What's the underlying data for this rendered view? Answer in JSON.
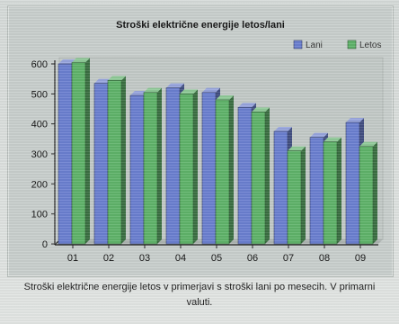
{
  "chart_data": {
    "type": "bar",
    "title": "Stroški električne energije letos/lani",
    "categories": [
      "01",
      "02",
      "03",
      "04",
      "05",
      "06",
      "07",
      "08",
      "09"
    ],
    "series": [
      {
        "name": "Lani",
        "values": [
          600,
          535,
          495,
          520,
          505,
          455,
          375,
          355,
          405
        ],
        "color": "#6b7fd0"
      },
      {
        "name": "Letos",
        "values": [
          605,
          545,
          505,
          500,
          480,
          440,
          310,
          340,
          325
        ],
        "color": "#5fb36a"
      }
    ],
    "ylim": [
      0,
      600
    ],
    "yticks": [
      0,
      100,
      200,
      300,
      400,
      500,
      600
    ],
    "xlabel": "",
    "ylabel": "",
    "grid": false,
    "legend_position": "top-right",
    "three_d": true
  },
  "caption": "Stroški električne energije letos v primerjavi s stroški lani po mesecih. V primarni valuti."
}
